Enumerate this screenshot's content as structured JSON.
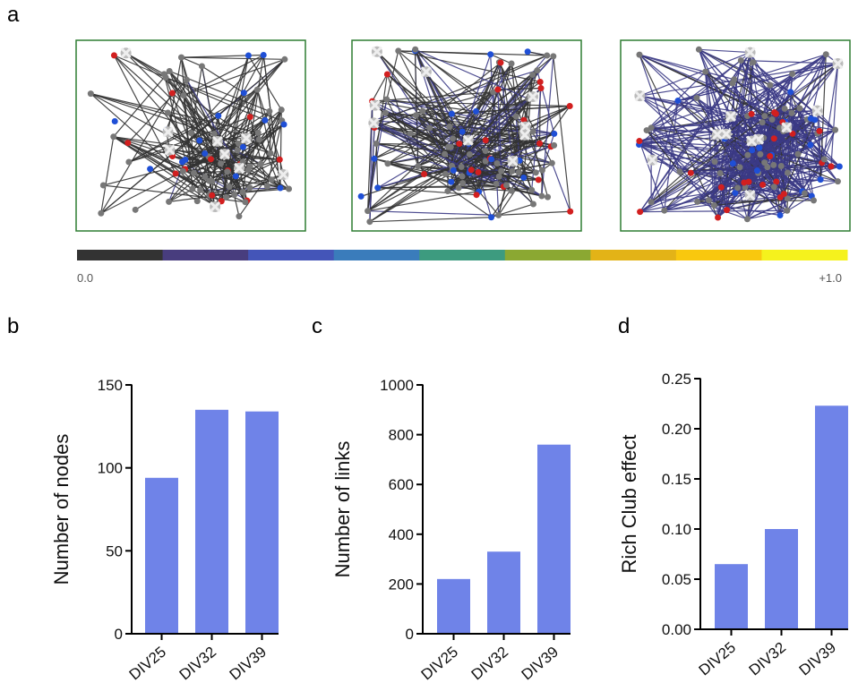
{
  "panel_labels": {
    "a": "a",
    "b": "b",
    "c": "c",
    "d": "d"
  },
  "colorbar": {
    "min_label": "0.0",
    "max_label": "+1.0",
    "colors": [
      "#333333",
      "#483d7e",
      "#4455b8",
      "#3a7cbb",
      "#3d9b7f",
      "#8ba832",
      "#e3b317",
      "#f9c80e",
      "#f5f21d"
    ]
  },
  "network_colors": {
    "panel_border": "#2e7d32",
    "edge_dark": "#333333",
    "edge_navy": "#3b3a85",
    "node_gray": "#777777",
    "node_red": "#d21f1f",
    "node_blue": "#1f4fd6",
    "hub_white": "#eeeeee"
  },
  "bar_color": "#6f83e8",
  "chart_data": [
    {
      "type": "bar",
      "panel": "b",
      "categories": [
        "DIV25",
        "DIV32",
        "DIV39"
      ],
      "values": [
        94,
        135,
        134
      ],
      "ylabel": "Number of nodes",
      "ylim": [
        0,
        150
      ],
      "yticks": [
        0,
        50,
        100,
        150
      ],
      "ytick_labels": [
        "0",
        "50",
        "100",
        "150"
      ]
    },
    {
      "type": "bar",
      "panel": "c",
      "categories": [
        "DIV25",
        "DIV32",
        "DIV39"
      ],
      "values": [
        220,
        330,
        760
      ],
      "ylabel": "Number of links",
      "ylim": [
        0,
        1000
      ],
      "yticks": [
        0,
        200,
        400,
        600,
        800,
        1000
      ],
      "ytick_labels": [
        "0",
        "200",
        "400",
        "600",
        "800",
        "1000"
      ]
    },
    {
      "type": "bar",
      "panel": "d",
      "categories": [
        "DIV25",
        "DIV32",
        "DIV39"
      ],
      "values": [
        0.065,
        0.1,
        0.223
      ],
      "ylabel": "Rich Club effect",
      "ylim": [
        0,
        0.25
      ],
      "yticks": [
        0,
        0.05,
        0.1,
        0.15,
        0.2,
        0.25
      ],
      "ytick_labels": [
        "0.00",
        "0.05",
        "0.10",
        "0.15",
        "0.20",
        "0.25"
      ]
    }
  ]
}
